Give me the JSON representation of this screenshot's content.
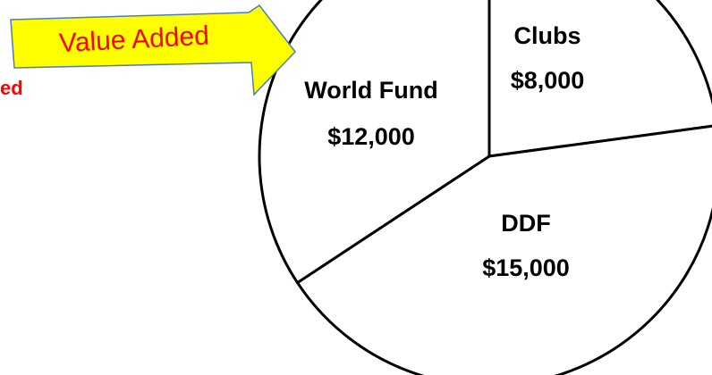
{
  "chart_data": {
    "type": "pie",
    "categories": [
      "Clubs",
      "DDF",
      "World Fund"
    ],
    "values": [
      8000,
      15000,
      12000
    ],
    "value_labels": [
      "$8,000",
      "$15,000",
      "$12,000"
    ],
    "annotations": [
      "Value Added",
      "ed"
    ]
  }
}
